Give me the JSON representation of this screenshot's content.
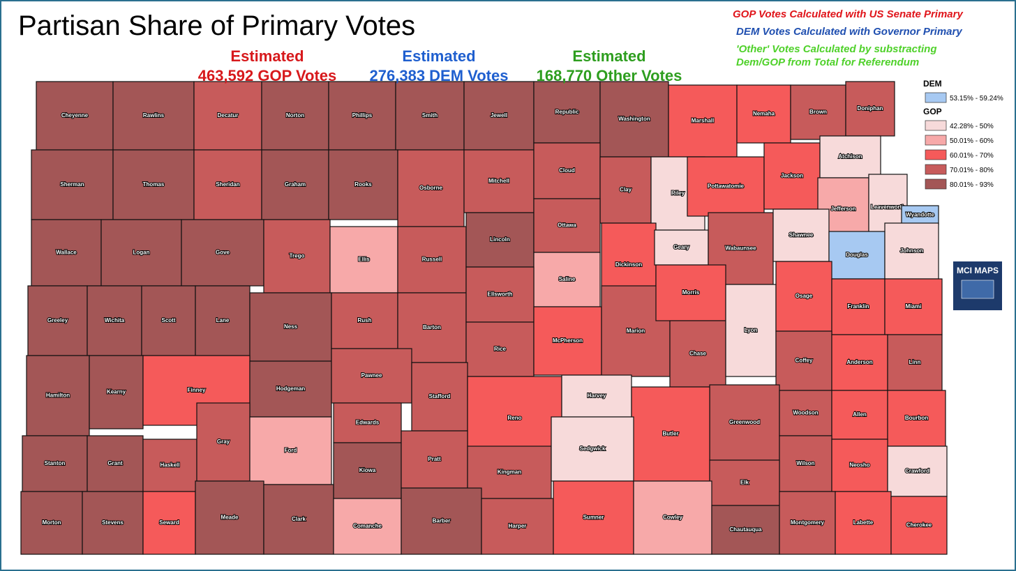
{
  "header": {
    "title": "Partisan Share of Primary Votes",
    "estimates": [
      {
        "label": "Estimated",
        "value": "463,592 GOP Votes",
        "color": "#d7191c"
      },
      {
        "label": "Estimated",
        "value": "276,383 DEM Votes",
        "color": "#1f5fcf"
      },
      {
        "label": "Estimated",
        "value": "168,770 Other Votes",
        "color": "#2e9e1f"
      }
    ],
    "notes": [
      {
        "lines": [
          "GOP Votes Calculated with US Senate Primary"
        ],
        "color": "#e0141a"
      },
      {
        "lines": [
          "DEM Votes Calculated with Governor Primary"
        ],
        "color": "#1f4fb0"
      },
      {
        "lines": [
          "'Other' Votes Calculated by substracting",
          "Dem/GOP from Total for Referendum"
        ],
        "color": "#4fd12a"
      }
    ]
  },
  "legend": {
    "groups": [
      {
        "title": "DEM",
        "items": [
          {
            "label": "53.15% - 59.24%",
            "color": "#a7c9f2"
          }
        ]
      },
      {
        "title": "GOP",
        "items": [
          {
            "label": "42.28% - 50%",
            "color": "#f7dada"
          },
          {
            "label": "50.01% - 60%",
            "color": "#f7a9a9"
          },
          {
            "label": "60.01% - 70%",
            "color": "#f55a5a"
          },
          {
            "label": "70.01% - 80%",
            "color": "#c75b5b"
          },
          {
            "label": "80.01% - 93%",
            "color": "#a35656"
          }
        ]
      }
    ]
  },
  "logo": {
    "text": "MCI MAPS"
  },
  "counties": [
    {
      "name": "Cheyenne",
      "color": "#a35656"
    },
    {
      "name": "Rawlins",
      "color": "#a35656"
    },
    {
      "name": "Decatur",
      "color": "#c75b5b"
    },
    {
      "name": "Norton",
      "color": "#a35656"
    },
    {
      "name": "Phillips",
      "color": "#a35656"
    },
    {
      "name": "Smith",
      "color": "#a35656"
    },
    {
      "name": "Jewell",
      "color": "#a35656"
    },
    {
      "name": "Republic",
      "color": "#a35656"
    },
    {
      "name": "Washington",
      "color": "#a35656"
    },
    {
      "name": "Marshall",
      "color": "#f55a5a"
    },
    {
      "name": "Nemaha",
      "color": "#f55a5a"
    },
    {
      "name": "Brown",
      "color": "#c75b5b"
    },
    {
      "name": "Doniphan",
      "color": "#c75b5b"
    },
    {
      "name": "Sherman",
      "color": "#a35656"
    },
    {
      "name": "Thomas",
      "color": "#a35656"
    },
    {
      "name": "Sheridan",
      "color": "#c75b5b"
    },
    {
      "name": "Graham",
      "color": "#a35656"
    },
    {
      "name": "Rooks",
      "color": "#a35656"
    },
    {
      "name": "Osborne",
      "color": "#c75b5b"
    },
    {
      "name": "Mitchell",
      "color": "#c75b5b"
    },
    {
      "name": "Cloud",
      "color": "#c75b5b"
    },
    {
      "name": "Clay",
      "color": "#c75b5b"
    },
    {
      "name": "Riley",
      "color": "#f7dada"
    },
    {
      "name": "Pottawatomie",
      "color": "#f55a5a"
    },
    {
      "name": "Jackson",
      "color": "#f55a5a"
    },
    {
      "name": "Atchison",
      "color": "#f7dada"
    },
    {
      "name": "Jefferson",
      "color": "#f7a9a9"
    },
    {
      "name": "Leavenworth",
      "color": "#f7dada"
    },
    {
      "name": "Wyandotte",
      "color": "#a7c9f2"
    },
    {
      "name": "Wallace",
      "color": "#a35656"
    },
    {
      "name": "Logan",
      "color": "#a35656"
    },
    {
      "name": "Gove",
      "color": "#a35656"
    },
    {
      "name": "Trego",
      "color": "#c75b5b"
    },
    {
      "name": "Ellis",
      "color": "#f7a9a9"
    },
    {
      "name": "Russell",
      "color": "#c75b5b"
    },
    {
      "name": "Lincoln",
      "color": "#a35656"
    },
    {
      "name": "Ottawa",
      "color": "#c75b5b"
    },
    {
      "name": "Saline",
      "color": "#f7a9a9"
    },
    {
      "name": "Dickinson",
      "color": "#f55a5a"
    },
    {
      "name": "Geary",
      "color": "#f7dada"
    },
    {
      "name": "Wabaunsee",
      "color": "#c75b5b"
    },
    {
      "name": "Shawnee",
      "color": "#f7dada"
    },
    {
      "name": "Douglas",
      "color": "#a7c9f2"
    },
    {
      "name": "Johnson",
      "color": "#f7dada"
    },
    {
      "name": "Greeley",
      "color": "#a35656"
    },
    {
      "name": "Wichita",
      "color": "#a35656"
    },
    {
      "name": "Scott",
      "color": "#a35656"
    },
    {
      "name": "Lane",
      "color": "#a35656"
    },
    {
      "name": "Ness",
      "color": "#a35656"
    },
    {
      "name": "Rush",
      "color": "#c75b5b"
    },
    {
      "name": "Barton",
      "color": "#c75b5b"
    },
    {
      "name": "Ellsworth",
      "color": "#c75b5b"
    },
    {
      "name": "Rice",
      "color": "#c75b5b"
    },
    {
      "name": "McPherson",
      "color": "#f55a5a"
    },
    {
      "name": "Marion",
      "color": "#c75b5b"
    },
    {
      "name": "Morris",
      "color": "#f55a5a"
    },
    {
      "name": "Chase",
      "color": "#c75b5b"
    },
    {
      "name": "Lyon",
      "color": "#f7dada"
    },
    {
      "name": "Osage",
      "color": "#f55a5a"
    },
    {
      "name": "Franklin",
      "color": "#f55a5a"
    },
    {
      "name": "Miami",
      "color": "#f55a5a"
    },
    {
      "name": "Hamilton",
      "color": "#a35656"
    },
    {
      "name": "Kearny",
      "color": "#a35656"
    },
    {
      "name": "Finney",
      "color": "#f55a5a"
    },
    {
      "name": "Hodgeman",
      "color": "#a35656"
    },
    {
      "name": "Pawnee",
      "color": "#c75b5b"
    },
    {
      "name": "Stafford",
      "color": "#c75b5b"
    },
    {
      "name": "Reno",
      "color": "#f55a5a"
    },
    {
      "name": "Harvey",
      "color": "#f7dada"
    },
    {
      "name": "Coffey",
      "color": "#c75b5b"
    },
    {
      "name": "Anderson",
      "color": "#f55a5a"
    },
    {
      "name": "Linn",
      "color": "#c75b5b"
    },
    {
      "name": "Greenwood",
      "color": "#c75b5b"
    },
    {
      "name": "Butler",
      "color": "#f55a5a"
    },
    {
      "name": "Stanton",
      "color": "#a35656"
    },
    {
      "name": "Grant",
      "color": "#a35656"
    },
    {
      "name": "Haskell",
      "color": "#c75b5b"
    },
    {
      "name": "Gray",
      "color": "#c75b5b"
    },
    {
      "name": "Ford",
      "color": "#f7a9a9"
    },
    {
      "name": "Edwards",
      "color": "#c75b5b"
    },
    {
      "name": "Kiowa",
      "color": "#a35656"
    },
    {
      "name": "Pratt",
      "color": "#c75b5b"
    },
    {
      "name": "Kingman",
      "color": "#c75b5b"
    },
    {
      "name": "Sedgwick",
      "color": "#f7dada"
    },
    {
      "name": "Woodson",
      "color": "#c75b5b"
    },
    {
      "name": "Allen",
      "color": "#f55a5a"
    },
    {
      "name": "Bourbon",
      "color": "#f55a5a"
    },
    {
      "name": "Wilson",
      "color": "#c75b5b"
    },
    {
      "name": "Neosho",
      "color": "#f55a5a"
    },
    {
      "name": "Crawford",
      "color": "#f7dada"
    },
    {
      "name": "Elk",
      "color": "#c75b5b"
    },
    {
      "name": "Morton",
      "color": "#a35656"
    },
    {
      "name": "Stevens",
      "color": "#a35656"
    },
    {
      "name": "Seward",
      "color": "#f55a5a"
    },
    {
      "name": "Meade",
      "color": "#a35656"
    },
    {
      "name": "Clark",
      "color": "#a35656"
    },
    {
      "name": "Comanche",
      "color": "#f7a9a9"
    },
    {
      "name": "Barber",
      "color": "#a35656"
    },
    {
      "name": "Harper",
      "color": "#c75b5b"
    },
    {
      "name": "Sumner",
      "color": "#f55a5a"
    },
    {
      "name": "Cowley",
      "color": "#f7a9a9"
    },
    {
      "name": "Chautauqua",
      "color": "#a35656"
    },
    {
      "name": "Montgomery",
      "color": "#c75b5b"
    },
    {
      "name": "Labette",
      "color": "#f55a5a"
    },
    {
      "name": "Cherokee",
      "color": "#f55a5a"
    }
  ]
}
